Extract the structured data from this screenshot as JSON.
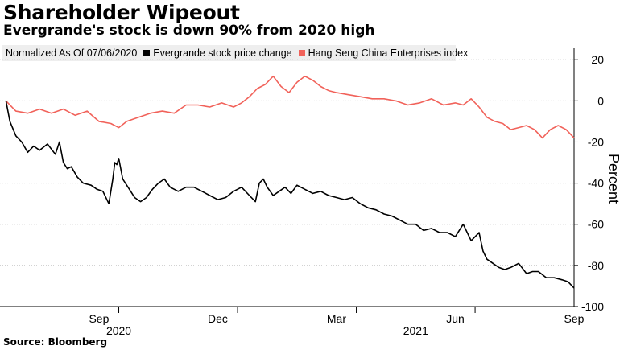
{
  "title": "Shareholder Wipeout",
  "subtitle": "Evergrande's stock is down 90% from 2020 high",
  "source": "Source: Bloomberg",
  "legend": {
    "note": "Normalized As Of 07/06/2020",
    "items": [
      {
        "label": "Evergrande stock price change",
        "color": "#000000"
      },
      {
        "label": "Hang Seng China Enterprises index",
        "color": "#f1625a"
      }
    ]
  },
  "chart_data": {
    "type": "line",
    "title": "Shareholder Wipeout",
    "subtitle": "Evergrande's stock is down 90% from 2020 high",
    "xlabel": "",
    "ylabel": "Percent",
    "xlim": [
      0,
      14.5
    ],
    "ylim": [
      -100,
      24
    ],
    "y_ticks": [
      20,
      0,
      -20,
      -40,
      -60,
      -80,
      -100
    ],
    "x_ticks": [
      {
        "x": 2.5,
        "label": "Sep"
      },
      {
        "x": 5.5,
        "label": "Dec"
      },
      {
        "x": 8.5,
        "label": "Mar"
      },
      {
        "x": 11.5,
        "label": "Jun"
      },
      {
        "x": 14.5,
        "label": "Sep"
      }
    ],
    "x_dividers": [
      3.0,
      6.0,
      9.0,
      12.0
    ],
    "year_labels": [
      {
        "x": 3.0,
        "label": "2020"
      },
      {
        "x": 10.5,
        "label": "2021"
      }
    ],
    "x_unit": "months since 2020-07-01",
    "series": [
      {
        "name": "Evergrande stock price change",
        "color": "#000000",
        "x": [
          0.15,
          0.25,
          0.4,
          0.55,
          0.7,
          0.85,
          1.0,
          1.2,
          1.4,
          1.5,
          1.6,
          1.7,
          1.8,
          1.95,
          2.1,
          2.3,
          2.45,
          2.6,
          2.75,
          2.85,
          2.9,
          2.95,
          3.0,
          3.1,
          3.2,
          3.3,
          3.4,
          3.55,
          3.7,
          3.85,
          4.0,
          4.15,
          4.3,
          4.5,
          4.7,
          4.9,
          5.1,
          5.3,
          5.5,
          5.7,
          5.9,
          6.1,
          6.3,
          6.45,
          6.55,
          6.65,
          6.75,
          6.9,
          7.05,
          7.2,
          7.35,
          7.5,
          7.7,
          7.9,
          8.1,
          8.3,
          8.5,
          8.7,
          8.9,
          9.1,
          9.3,
          9.5,
          9.7,
          9.9,
          10.1,
          10.3,
          10.5,
          10.7,
          10.9,
          11.1,
          11.3,
          11.5,
          11.7,
          11.9,
          12.1,
          12.2,
          12.3,
          12.45,
          12.6,
          12.75,
          12.9,
          13.1,
          13.3,
          13.45,
          13.6,
          13.8,
          14.0,
          14.2,
          14.35,
          14.5
        ],
        "y": [
          0,
          -10,
          -17,
          -20,
          -25,
          -22,
          -24,
          -21,
          -26,
          -20,
          -30,
          -33,
          -32,
          -37,
          -40,
          -41,
          -43,
          -44,
          -50,
          -38,
          -30,
          -31,
          -28,
          -38,
          -41,
          -44,
          -47,
          -49,
          -47,
          -43,
          -40,
          -38,
          -42,
          -44,
          -42,
          -42,
          -44,
          -46,
          -48,
          -47,
          -44,
          -42,
          -46,
          -49,
          -40,
          -38,
          -42,
          -46,
          -44,
          -42,
          -45,
          -41,
          -43,
          -45,
          -44,
          -46,
          -47,
          -48,
          -47,
          -50,
          -52,
          -53,
          -55,
          -56,
          -58,
          -60,
          -60,
          -63,
          -62,
          -64,
          -64,
          -66,
          -60,
          -68,
          -64,
          -73,
          -77,
          -79,
          -81,
          -82,
          -81,
          -79,
          -84,
          -83,
          -83,
          -86,
          -86,
          -87,
          -88,
          -91
        ]
      },
      {
        "name": "Hang Seng China Enterprises index",
        "color": "#f1625a",
        "x": [
          0.15,
          0.4,
          0.7,
          1.0,
          1.3,
          1.6,
          1.9,
          2.2,
          2.5,
          2.8,
          3.0,
          3.2,
          3.5,
          3.8,
          4.1,
          4.4,
          4.7,
          5.0,
          5.3,
          5.6,
          5.9,
          6.1,
          6.3,
          6.5,
          6.7,
          6.9,
          7.1,
          7.3,
          7.5,
          7.7,
          7.9,
          8.1,
          8.3,
          8.5,
          8.8,
          9.1,
          9.4,
          9.7,
          10.0,
          10.3,
          10.6,
          10.9,
          11.2,
          11.5,
          11.7,
          11.9,
          12.1,
          12.3,
          12.5,
          12.7,
          12.9,
          13.1,
          13.3,
          13.5,
          13.7,
          13.9,
          14.1,
          14.3,
          14.5
        ],
        "y": [
          0,
          -5,
          -6,
          -4,
          -6,
          -4,
          -7,
          -5,
          -10,
          -11,
          -13,
          -10,
          -8,
          -6,
          -5,
          -6,
          -2,
          -2,
          -3,
          -1,
          -3,
          -1,
          2,
          6,
          8,
          12,
          7,
          4,
          9,
          12,
          10,
          7,
          5,
          4,
          3,
          2,
          1,
          1,
          0,
          -2,
          -1,
          1,
          -2,
          -1,
          -2,
          1,
          -3,
          -8,
          -10,
          -11,
          -14,
          -13,
          -12,
          -14,
          -18,
          -14,
          -12,
          -14,
          -18
        ]
      }
    ]
  }
}
